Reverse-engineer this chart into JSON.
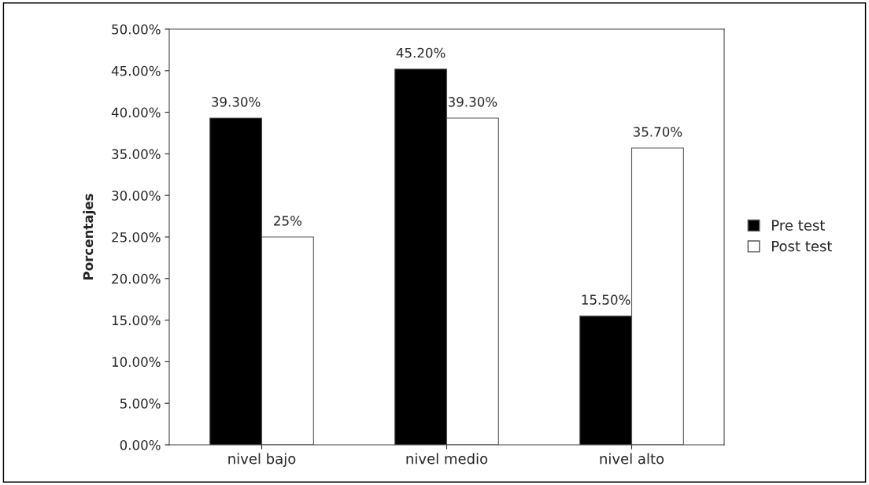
{
  "chart_data": {
    "type": "bar",
    "ylabel": "Porcentajes",
    "categories": [
      "nivel bajo",
      "nivel medio",
      "nivel alto"
    ],
    "series": [
      {
        "name": "Pre test",
        "color": "#000000",
        "values": [
          39.3,
          45.2,
          15.5
        ],
        "value_labels": [
          "39.30%",
          "45.20%",
          "15.50%"
        ]
      },
      {
        "name": "Post test",
        "color": "#ffffff",
        "values": [
          25,
          39.3,
          35.7
        ],
        "value_labels": [
          "25%",
          "39.30%",
          "35.70%"
        ]
      }
    ],
    "ylim": [
      0,
      50
    ],
    "yticks": [
      {
        "value": 0,
        "label": "0.00%"
      },
      {
        "value": 5,
        "label": "5.00%"
      },
      {
        "value": 10,
        "label": "10.00%"
      },
      {
        "value": 15,
        "label": "15.00%"
      },
      {
        "value": 20,
        "label": "20.00%"
      },
      {
        "value": 25,
        "label": "25.00%"
      },
      {
        "value": 30,
        "label": "30.00%"
      },
      {
        "value": 35,
        "label": "35.00%"
      },
      {
        "value": 40,
        "label": "40.00%"
      },
      {
        "value": 45,
        "label": "45.00%"
      },
      {
        "value": 50,
        "label": "50.00%"
      }
    ],
    "grid": false,
    "legend": "right"
  }
}
